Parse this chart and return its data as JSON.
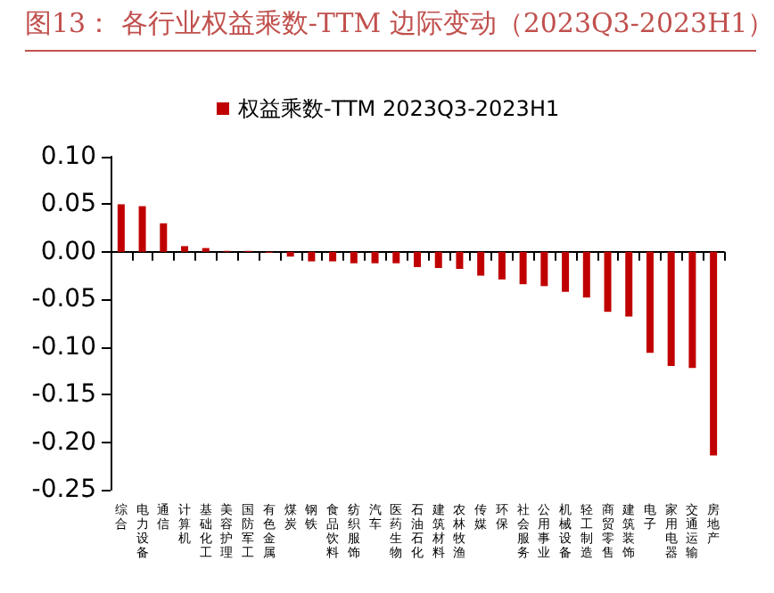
{
  "chart_data": {
    "type": "bar",
    "title": "图13：  各行业权益乘数-TTM 边际变动（2023Q3-2023H1）",
    "categories": [
      "综合",
      "电力设备",
      "通信",
      "计算机",
      "基础化工",
      "美容护理",
      "国防军工",
      "有色金属",
      "煤炭",
      "钢铁",
      "食品饮料",
      "纺织服饰",
      "汽车",
      "医药生物",
      "石油石化",
      "建筑材料",
      "农林牧渔",
      "传媒",
      "环保",
      "社会服务",
      "公用事业",
      "机械设备",
      "轻工制造",
      "商贸零售",
      "建筑装饰",
      "电子",
      "家用电器",
      "交通运输",
      "房地产"
    ],
    "series": [
      {
        "name": "权益乘数-TTM 2023Q3-2023H1",
        "color": "#c00000",
        "values": [
          0.05,
          0.048,
          0.03,
          0.006,
          0.004,
          0.001,
          0.001,
          -0.001,
          -0.005,
          -0.01,
          -0.01,
          -0.012,
          -0.012,
          -0.012,
          -0.016,
          -0.017,
          -0.018,
          -0.025,
          -0.029,
          -0.034,
          -0.036,
          -0.042,
          -0.048,
          -0.063,
          -0.068,
          -0.106,
          -0.12,
          -0.122,
          -0.214
        ]
      }
    ],
    "ylim": [
      -0.25,
      0.1
    ],
    "yticks": [
      {
        "value": -0.25,
        "label": "-0.25"
      },
      {
        "value": -0.2,
        "label": "-0.20"
      },
      {
        "value": -0.15,
        "label": "-0.15"
      },
      {
        "value": -0.1,
        "label": "-0.10"
      },
      {
        "value": -0.05,
        "label": "-0.05"
      },
      {
        "value": 0,
        "label": "0.00"
      },
      {
        "value": 0.05,
        "label": "0.05"
      },
      {
        "value": 0.1,
        "label": "0.10"
      }
    ],
    "legend": "top"
  }
}
